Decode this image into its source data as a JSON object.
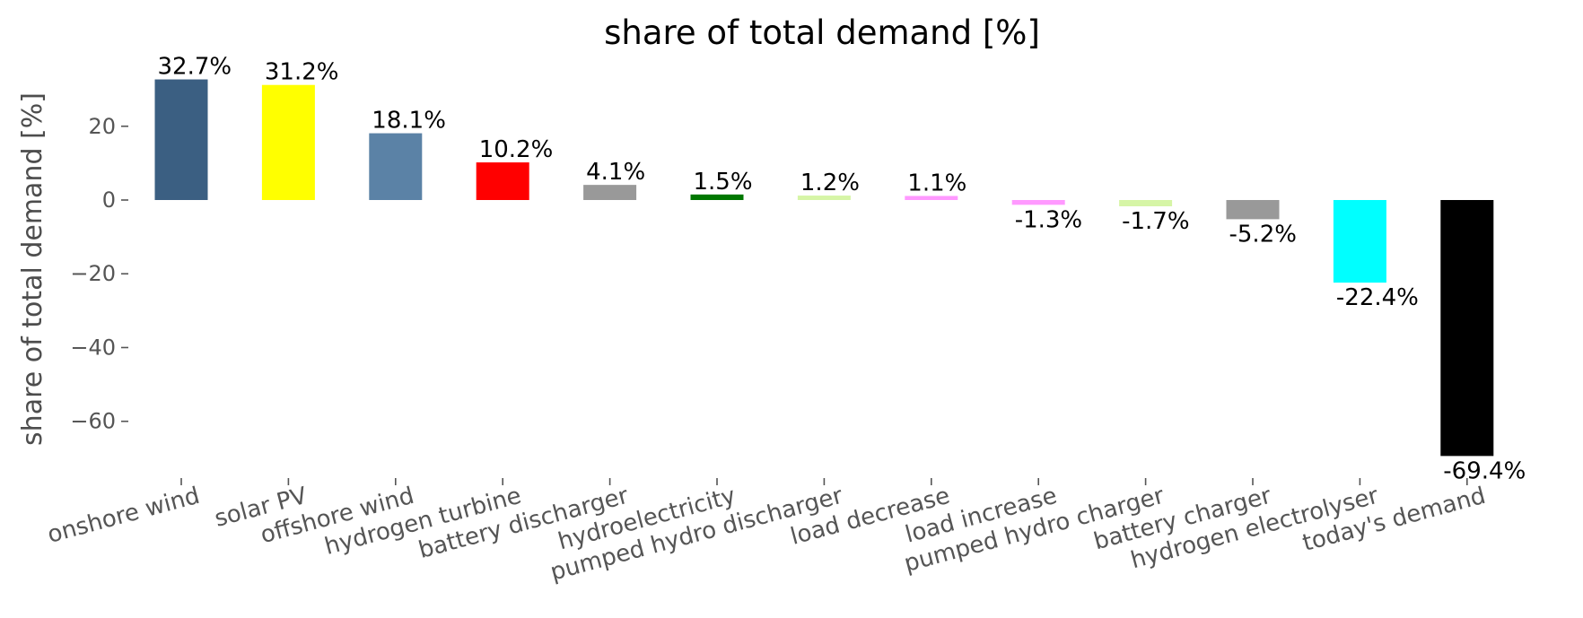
{
  "chart_data": {
    "type": "bar",
    "title": "share of total demand [%]",
    "xlabel": "",
    "ylabel": "share of total demand [%]",
    "ylim": [
      -76,
      39
    ],
    "yticks": [
      20,
      0,
      -20,
      -40,
      -60
    ],
    "ytick_labels": [
      "20",
      "0",
      "−20",
      "−40",
      "−60"
    ],
    "grid": false,
    "categories": [
      "onshore wind",
      "solar PV",
      "offshore wind",
      "hydrogen turbine",
      "battery discharger",
      "hydroelectricity",
      "pumped hydro discharger",
      "load decrease",
      "load increase",
      "pumped hydro charger",
      "battery charger",
      "hydrogen electrolyser",
      "today's demand"
    ],
    "values": [
      32.7,
      31.2,
      18.1,
      10.2,
      4.1,
      1.5,
      1.2,
      1.1,
      -1.3,
      -1.7,
      -5.2,
      -22.4,
      -69.4
    ],
    "value_labels": [
      "32.7%",
      "31.2%",
      "18.1%",
      "10.2%",
      "4.1%",
      "1.5%",
      "1.2%",
      "1.1%",
      "-1.3%",
      "-1.7%",
      "-5.2%",
      "-22.4%",
      "-69.4%"
    ],
    "colors": [
      "#3b5f82",
      "#ffff00",
      "#5b82a6",
      "#ff0000",
      "#999999",
      "#007700",
      "#d6f5a6",
      "#ff99ff",
      "#ff99ff",
      "#d6f5a6",
      "#999999",
      "#00ffff",
      "#000000"
    ]
  }
}
